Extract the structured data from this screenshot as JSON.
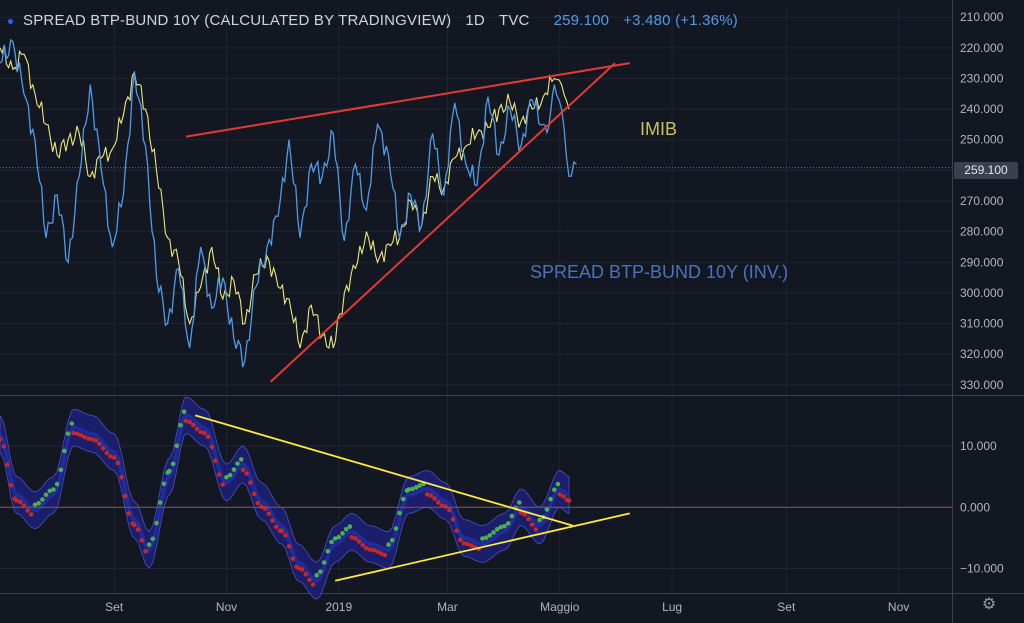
{
  "header": {
    "title": "SPREAD BTP-BUND 10Y (CALCULATED BY TRADINGVIEW)",
    "interval": "1D",
    "source": "TVC",
    "last": "259.100",
    "change": "+3.480 (+1.36%)"
  },
  "annotations": {
    "imib": "IMIB",
    "spread": "SPREAD BTP-BUND 10Y (INV.)"
  },
  "price_tag": "259.100",
  "colors": {
    "background": "#131722",
    "spread_line": "#4f9be8",
    "imib_line": "#ece779",
    "trend_red": "#e53935",
    "trend_yellow": "#ffeb3b",
    "osc_up": "#4caf50",
    "osc_down": "#c62828",
    "osc_band": "#1c1f6e",
    "zero_line": "#a0522d"
  },
  "chart_data": [
    {
      "type": "line",
      "name": "main-price-chart",
      "y_axis": {
        "inverted": true,
        "range": [
          207,
          333
        ],
        "ticks": [
          210,
          220,
          230,
          240,
          250,
          260,
          270,
          280,
          290,
          300,
          310,
          320,
          330
        ],
        "tick_labels": [
          "210.000",
          "220.000",
          "230.000",
          "240.000",
          "250.000",
          "",
          "270.000",
          "280.000",
          "290.000",
          "300.000",
          "310.000",
          "320.000",
          "330.000"
        ]
      },
      "x_axis": {
        "range": [
          "2018-07-01",
          "2019-11-30"
        ],
        "ticks": [
          "2018-09-01",
          "2018-11-01",
          "2019-01-01",
          "2019-03-01",
          "2019-05-01",
          "2019-07-01",
          "2019-09-01",
          "2019-11-01"
        ],
        "tick_labels": [
          "Set",
          "Nov",
          "2019",
          "Mar",
          "Maggio",
          "Lug",
          "Set",
          "Nov"
        ]
      },
      "grid": true,
      "series": [
        {
          "name": "SPREAD BTP-BUND 10Y (INV.)",
          "x": [
            "2018-07-01",
            "2018-07-08",
            "2018-07-14",
            "2018-07-20",
            "2018-07-26",
            "2018-08-01",
            "2018-08-07",
            "2018-08-13",
            "2018-08-19",
            "2018-08-25",
            "2018-08-31",
            "2018-09-06",
            "2018-09-12",
            "2018-09-18",
            "2018-09-24",
            "2018-09-30",
            "2018-10-06",
            "2018-10-12",
            "2018-10-18",
            "2018-10-24",
            "2018-10-30",
            "2018-11-05",
            "2018-11-11",
            "2018-11-17",
            "2018-11-23",
            "2018-11-29",
            "2018-12-05",
            "2018-12-11",
            "2018-12-17",
            "2018-12-23",
            "2018-12-29",
            "2019-01-04",
            "2019-01-10",
            "2019-01-16",
            "2019-01-22",
            "2019-01-28",
            "2019-02-03",
            "2019-02-09",
            "2019-02-15",
            "2019-02-21",
            "2019-02-27",
            "2019-03-05",
            "2019-03-11",
            "2019-03-17",
            "2019-03-23",
            "2019-03-29",
            "2019-04-04",
            "2019-04-10",
            "2019-04-16",
            "2019-04-22",
            "2019-04-25",
            "2019-04-28",
            "2019-05-02",
            "2019-05-06",
            "2019-05-10"
          ],
          "values": [
            225,
            218,
            235,
            250,
            282,
            268,
            290,
            262,
            232,
            260,
            285,
            268,
            228,
            252,
            295,
            310,
            292,
            318,
            285,
            305,
            295,
            315,
            322,
            298,
            285,
            275,
            250,
            282,
            258,
            262,
            248,
            283,
            258,
            273,
            245,
            255,
            282,
            268,
            278,
            248,
            268,
            238,
            258,
            265,
            236,
            255,
            240,
            252,
            237,
            245,
            246,
            232,
            240,
            262,
            258
          ]
        },
        {
          "name": "IMIB",
          "x": [
            "2018-07-01",
            "2018-07-08",
            "2018-07-14",
            "2018-07-20",
            "2018-07-26",
            "2018-08-01",
            "2018-08-07",
            "2018-08-13",
            "2018-08-19",
            "2018-08-25",
            "2018-08-31",
            "2018-09-06",
            "2018-09-12",
            "2018-09-18",
            "2018-09-24",
            "2018-09-30",
            "2018-10-06",
            "2018-10-12",
            "2018-10-18",
            "2018-10-24",
            "2018-10-30",
            "2018-11-05",
            "2018-11-11",
            "2018-11-17",
            "2018-11-23",
            "2018-11-29",
            "2018-12-05",
            "2018-12-11",
            "2018-12-17",
            "2018-12-23",
            "2018-12-29",
            "2019-01-04",
            "2019-01-10",
            "2019-01-16",
            "2019-01-22",
            "2019-01-28",
            "2019-02-03",
            "2019-02-09",
            "2019-02-15",
            "2019-02-21",
            "2019-02-27",
            "2019-03-05",
            "2019-03-11",
            "2019-03-17",
            "2019-03-23",
            "2019-03-29",
            "2019-04-04",
            "2019-04-10",
            "2019-04-16",
            "2019-04-22",
            "2019-04-28",
            "2019-05-02",
            "2019-05-06"
          ],
          "values": [
            220,
            227,
            222,
            235,
            245,
            255,
            250,
            248,
            262,
            256,
            253,
            242,
            228,
            240,
            260,
            282,
            290,
            310,
            298,
            285,
            302,
            296,
            310,
            294,
            288,
            298,
            302,
            318,
            304,
            314,
            318,
            300,
            292,
            280,
            290,
            284,
            282,
            270,
            278,
            262,
            266,
            256,
            252,
            248,
            246,
            240,
            238,
            244,
            240,
            236,
            230,
            232,
            240
          ]
        }
      ],
      "trendlines": [
        {
          "name": "upper-resistance",
          "from": [
            "2018-10-10",
            249
          ],
          "to": [
            "2019-06-08",
            225
          ]
        },
        {
          "name": "lower-support",
          "from": [
            "2018-11-25",
            329
          ],
          "to": [
            "2019-05-31",
            225
          ]
        }
      ]
    },
    {
      "type": "line",
      "name": "oscillator-chart",
      "y_axis": {
        "range": [
          -14,
          18
        ],
        "ticks": [
          10,
          0,
          -10
        ],
        "tick_labels": [
          "10.000",
          "0.000",
          "−10.000"
        ]
      },
      "zero_line": 0,
      "series": [
        {
          "name": "oscillator",
          "x": [
            "2018-07-01",
            "2018-07-10",
            "2018-07-20",
            "2018-07-30",
            "2018-08-10",
            "2018-08-20",
            "2018-09-01",
            "2018-09-12",
            "2018-09-20",
            "2018-10-01",
            "2018-10-10",
            "2018-10-20",
            "2018-11-01",
            "2018-11-10",
            "2018-11-20",
            "2018-12-01",
            "2018-12-10",
            "2018-12-20",
            "2018-12-30",
            "2019-01-08",
            "2019-01-18",
            "2019-01-28",
            "2019-02-08",
            "2019-02-18",
            "2019-02-28",
            "2019-03-10",
            "2019-03-20",
            "2019-04-01",
            "2019-04-10",
            "2019-04-20",
            "2019-05-01",
            "2019-05-06"
          ],
          "values": [
            12,
            2,
            -0.5,
            2,
            13,
            12,
            9,
            -2,
            -7,
            5,
            15,
            13,
            4,
            7,
            1,
            -3,
            -9,
            -12,
            -6,
            -4,
            -6,
            -7,
            2,
            3,
            1,
            -5,
            -6,
            -4,
            0,
            -3,
            3,
            2
          ]
        }
      ],
      "trendlines": [
        {
          "name": "upper-trendline",
          "from": [
            "2018-10-15",
            15
          ],
          "to": [
            "2019-05-08",
            -3
          ]
        },
        {
          "name": "lower-trendline",
          "from": [
            "2018-12-30",
            -12
          ],
          "to": [
            "2019-06-08",
            -1
          ]
        }
      ]
    }
  ]
}
